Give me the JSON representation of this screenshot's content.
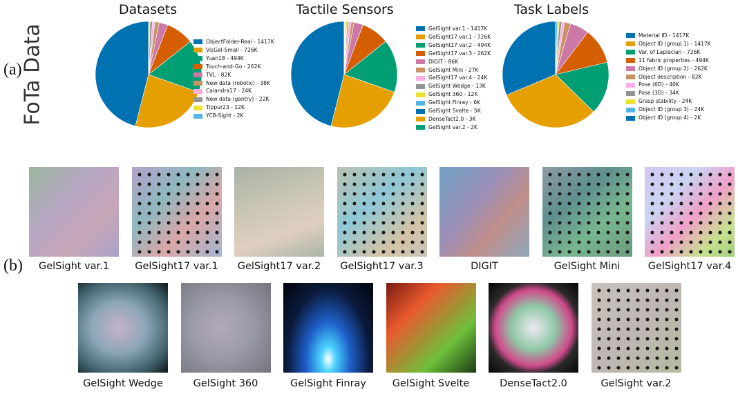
{
  "figure": {
    "side_title": "FoTa Data",
    "label_a": "(a)",
    "label_b": "(b)"
  },
  "chart_data": [
    {
      "type": "pie",
      "title": "Datasets",
      "legend_position": "right",
      "series": [
        {
          "name": "ObjectFolder-Real",
          "label": "ObjectFolder-Real - 1417K",
          "value": 1417,
          "color": "#0072b2"
        },
        {
          "name": "VisGel-Small",
          "label": "VisGel-Small - 726K",
          "value": 726,
          "color": "#e69f00"
        },
        {
          "name": "Yuan18",
          "label": "Yuan18 - 494K",
          "value": 494,
          "color": "#009e73"
        },
        {
          "name": "Touch-and-Go",
          "label": "Touch-and-Go - 262K",
          "value": 262,
          "color": "#d55e00"
        },
        {
          "name": "TVL",
          "label": "TVL - 82K",
          "value": 82,
          "color": "#cc79a7"
        },
        {
          "name": "New data (robotic)",
          "label": "New data (robotic) - 38K",
          "value": 38,
          "color": "#ca9161"
        },
        {
          "name": "Calandra17",
          "label": "Calandra17 - 24K",
          "value": 24,
          "color": "#fbafe4"
        },
        {
          "name": "New data (gantry)",
          "label": "New data (gantry) - 22K",
          "value": 22,
          "color": "#949494"
        },
        {
          "name": "Tippur23",
          "label": "Tippur23 - 12K",
          "value": 12,
          "color": "#ece133"
        },
        {
          "name": "YCB-Sight",
          "label": "YCB-Sight - 2K",
          "value": 2,
          "color": "#56b4e9"
        }
      ]
    },
    {
      "type": "pie",
      "title": "Tactile Sensors",
      "legend_position": "right",
      "series": [
        {
          "name": "GelSight var.1",
          "label": "GelSight var.1 - 1417K",
          "value": 1417,
          "color": "#0072b2"
        },
        {
          "name": "GelSight17 var.1",
          "label": "GelSight17 var.1 - 726K",
          "value": 726,
          "color": "#e69f00"
        },
        {
          "name": "GelSight17 var.2",
          "label": "GelSight17 var.2 - 494K",
          "value": 494,
          "color": "#009e73"
        },
        {
          "name": "GelSight17 var.3",
          "label": "GelSight17 var.3 - 262K",
          "value": 262,
          "color": "#d55e00"
        },
        {
          "name": "DIGIT",
          "label": "DIGIT - 86K",
          "value": 86,
          "color": "#cc79a7"
        },
        {
          "name": "GelSight Mini",
          "label": "GelSight Mini - 27K",
          "value": 27,
          "color": "#ca9161"
        },
        {
          "name": "GelSight17 var.4",
          "label": "GelSight17 var.4 - 24K",
          "value": 24,
          "color": "#fbafe4"
        },
        {
          "name": "GelSight Wedge",
          "label": "GelSight Wedge - 13K",
          "value": 13,
          "color": "#949494"
        },
        {
          "name": "GelSight 360",
          "label": "GelSight 360 - 12K",
          "value": 12,
          "color": "#ece133"
        },
        {
          "name": "GelSight Finray",
          "label": "GelSight Finray - 6K",
          "value": 6,
          "color": "#56b4e9"
        },
        {
          "name": "GelSight Svelte",
          "label": "GelSight Svelte - 5K",
          "value": 5,
          "color": "#0072b2"
        },
        {
          "name": "DenseTact2.0",
          "label": "DenseTact2.0 - 3K",
          "value": 3,
          "color": "#e69f00"
        },
        {
          "name": "GelSight var.2",
          "label": "GelSight var.2 - 2K",
          "value": 2,
          "color": "#009e73"
        }
      ]
    },
    {
      "type": "pie",
      "title": "Task Labels",
      "legend_position": "right",
      "series": [
        {
          "name": "Material ID",
          "label": "Material ID - 1417K",
          "value": 1417,
          "color": "#0072b2"
        },
        {
          "name": "Object ID (group 1)",
          "label": "Object ID (group 1) - 1417K",
          "value": 1417,
          "color": "#e69f00"
        },
        {
          "name": "Var. of Laplacian",
          "label": "Var. of Laplacian - 726K",
          "value": 726,
          "color": "#009e73"
        },
        {
          "name": "11 fabric properties",
          "label": "11 fabric properties - 494K",
          "value": 494,
          "color": "#d55e00"
        },
        {
          "name": "Object ID (group 2)",
          "label": "Object ID (group 2) - 262K",
          "value": 262,
          "color": "#cc79a7"
        },
        {
          "name": "Object description",
          "label": "Object description - 82K",
          "value": 82,
          "color": "#ca9161"
        },
        {
          "name": "Pose (6D)",
          "label": "Pose (6D) - 40K",
          "value": 40,
          "color": "#fbafe4"
        },
        {
          "name": "Pose (3D)",
          "label": "Pose (3D) - 34K",
          "value": 34,
          "color": "#949494"
        },
        {
          "name": "Grasp stability",
          "label": "Grasp stability - 24K",
          "value": 24,
          "color": "#ece133"
        },
        {
          "name": "Object ID (group 3)",
          "label": "Object ID (group 3) - 24K",
          "value": 24,
          "color": "#56b4e9"
        },
        {
          "name": "Object ID (group 4)",
          "label": "Object ID (group 4) - 2K",
          "value": 2,
          "color": "#0072b2"
        }
      ]
    }
  ],
  "sensor_images": {
    "row1": [
      {
        "caption": "GelSight var.1",
        "bg": "linear-gradient(135deg,#9bb59f 0%,#b8a7c4 40%,#c7a6b8 70%,#a9a3c9 100%)",
        "dots": false
      },
      {
        "caption": "GelSight17 var.1",
        "bg": "linear-gradient(135deg,#b4a2c8 0%,#8fb7c0 35%,#d9a7a7 65%,#a3b6d0 100%)",
        "dots": true
      },
      {
        "caption": "GelSight17 var.2",
        "bg": "linear-gradient(160deg,#a8b2a6 0%,#c9c6b2 40%,#e0cfc0 70%,#a9b5a5 100%)",
        "dots": false
      },
      {
        "caption": "GelSight17 var.3",
        "bg": "linear-gradient(140deg,#b9c2b0 0%,#8fc7d6 40%,#d3c3a6 75%,#c9c4b6 100%)",
        "dots": true
      },
      {
        "caption": "DIGIT",
        "bg": "linear-gradient(130deg,#6fa0c4 0%,#9b8fb7 40%,#c08f8a 65%,#8fa6bd 100%)",
        "dots": false
      },
      {
        "caption": "GelSight Mini",
        "bg": "linear-gradient(140deg,#8e9aa6 0%,#5f8f8f 35%,#77b68f 65%,#6d9a7e 100%)",
        "dots": true
      },
      {
        "caption": "GelSight17 var.4",
        "bg": "linear-gradient(135deg,#d4c7f0 0%,#c9d4f2 30%,#f0a0c9 55%,#c8e08f 80%,#9fcf7f 100%)",
        "dots": true
      }
    ],
    "row2": [
      {
        "caption": "GelSight Wedge",
        "bg": "radial-gradient(ellipse at 45% 50%,#c7b3c9 0%,#8ba6b7 40%,#3f5f6a 75%,#0d1416 100%)",
        "dots": false
      },
      {
        "caption": "GelSight 360",
        "bg": "radial-gradient(circle at 45% 50%,#b4a9bd 0%,#9b9aa8 45%,#73747f 100%)",
        "dots": false
      },
      {
        "caption": "GelSight Finray",
        "bg": "radial-gradient(ellipse at 50% 85%,#ffffff 0%,#4ad1ff 12%,#1e5fc9 35%,#0b1a3c 65%,#02040a 100%)",
        "dots": false
      },
      {
        "caption": "GelSight Svelte",
        "bg": "linear-gradient(135deg,#7a1b12 0%,#e85a2c 30%,#6dbf3b 70%,#1b3a12 100%)",
        "dots": false
      },
      {
        "caption": "DenseTact2.0",
        "bg": "radial-gradient(circle at 50% 50%,#f0e9f2 0%,#8fc7a6 35%,#d04a8a 60%,#2a2a2a 72%,#050505 100%)",
        "dots": false
      },
      {
        "caption": "GelSight var.2",
        "bg": "linear-gradient(135deg,#c9c2bc 0%,#c0b7b4 50%,#b3ba9f 100%)",
        "dots": true
      }
    ]
  }
}
